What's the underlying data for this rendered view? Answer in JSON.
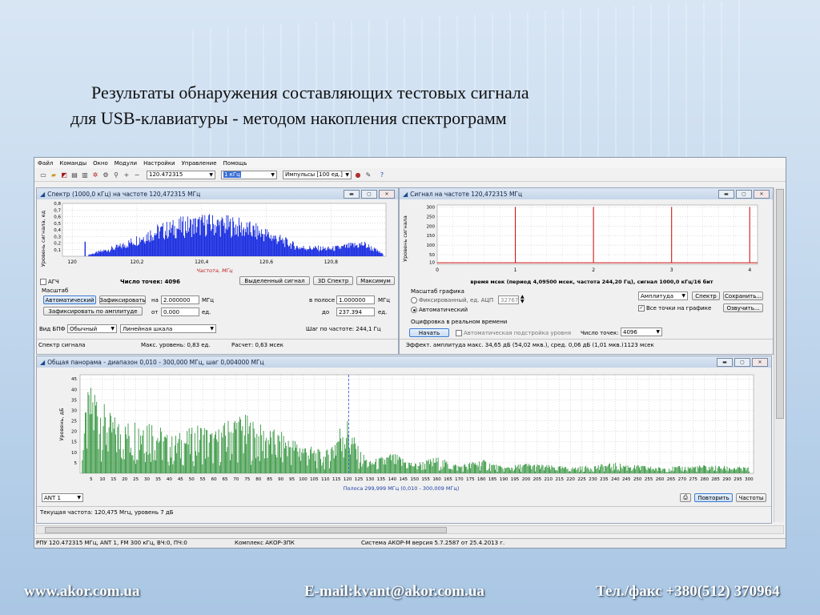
{
  "slide": {
    "title_line1": "Результаты обнаружения составляющих тестовых сигнала",
    "title_line2": "для USB-клавиатуры - методом накопления спектрограмм",
    "footer_site": "www.akor.com.ua",
    "footer_email": "E-mail:kvant@akor.com.ua",
    "footer_phone": "Тел./факс +380(512) 370964"
  },
  "menu": [
    "Файл",
    "Команды",
    "Окно",
    "Модули",
    "Настройки",
    "Управление",
    "Помощь"
  ],
  "toolbar": {
    "frequency_value": "120.472315",
    "bandwidth_value": "1 кГц",
    "mode_value": "Импульсы [100 ед.]"
  },
  "spectrum_window": {
    "title": "Спектр (1000,0 кГц) на частоте 120,472315 МГц",
    "y_axis_label": "Уровень сигнала, ед",
    "x_axis_label": "Частота, МГц",
    "agc_label": "АГЧ",
    "points_label": "Число точек: 4096",
    "btn_selected_signal": "Выделенный сигнал",
    "btn_3d": "3D Спектр",
    "btn_max": "Максимум",
    "scale_group": "Масштаб",
    "btn_auto": "Автоматический",
    "btn_fix": "Зафиксировать",
    "btn_fix_amp": "Зафиксировать по амплитуде",
    "lbl_at": "на",
    "val_at": "2.000000",
    "unit_mhz": "МГц",
    "lbl_from": "от",
    "val_from": "0.000",
    "unit_ed": "ед.",
    "lbl_band": "в полосе",
    "val_band": "1.000000",
    "lbl_to": "до",
    "val_to": "237.394",
    "lbl_fft": "Вид БПФ",
    "fft_value": "Обычный",
    "scale_value": "Линейная шкала",
    "step_label": "Шаг по частоте: 244,1 Гц",
    "status_left": "Спектр сигнала",
    "status_max": "Макс. уровень: 0,83 ед.",
    "status_calc": "Расчет: 0,63 мсек"
  },
  "signal_window": {
    "title": "Сигнал на частоте 120,472315 МГц",
    "y_axis_label": "Уровень сигнала",
    "x_caption": "время мсек (период 4,09500 мсек, частота 244,20 Гц), сигнал 1000,0 кГц/16 бит",
    "scale_group": "Масштаб графика",
    "radio_fixed": "Фиксированный, ед. АЦП",
    "fixed_value": "32767",
    "radio_auto": "Автоматический",
    "amp_value": "Амплитуда",
    "btn_spectrum": "Спектр",
    "btn_save": "Сохранить...",
    "chk_all_points": "Все точки на графике",
    "btn_voice": "Озвучить...",
    "digit_group": "Оцифровка в реальном времени",
    "btn_start": "Начать",
    "chk_auto_level": "Автоматическая подстройка уровня",
    "points_label": "Число точек:",
    "points_value": "4096",
    "status_effect": "Эффект. амплитуда макс. 34,65 дБ (54,02 мкв.), сред. 0,06 дБ (1,01 мкв.)",
    "status_time": "1123 мсек"
  },
  "panorama_window": {
    "title": "Общая панорама - диапазон 0,010 - 300,000 МГц, шаг 0,004000 МГц",
    "y_axis_label": "Уровень, дБ",
    "band_caption": "Полоса 299,999 МГц (0,010 - 300,009 МГц)",
    "antenna_value": "ANT 1",
    "btn_repeat": "Повторить",
    "btn_freqs": "Частоты",
    "status_current": "Текущая частота: 120,475 Мгц, уровень 7 дБ"
  },
  "statusbar": {
    "left": "РПУ 120.472315 МГц, ANT 1, FM 300 кГц, ВЧ:0, ПЧ:0",
    "mid": "Комплекс АКОР-3ПК",
    "right": "Система АКОР-М версия 5.7.2587 от 25.4.2013 г."
  },
  "chart_data": [
    {
      "type": "area",
      "id": "spectrum",
      "title": "Спектр (1000,0 кГц) на частоте 120,472315 МГц",
      "xlabel": "Частота, МГц",
      "ylabel": "Уровень сигнала, ед",
      "xlim": [
        119.97,
        120.97
      ],
      "ylim": [
        0,
        0.8
      ],
      "x_ticks": [
        120,
        120.2,
        120.4,
        120.6,
        120.8
      ],
      "x_tick_labels": [
        "120",
        "120,2",
        "120,4",
        "120,6",
        "120,8"
      ],
      "y_ticks": [
        0.1,
        0.2,
        0.3,
        0.4,
        0.5,
        0.6,
        0.7,
        0.8
      ],
      "y_tick_labels": [
        "0,1",
        "0,2",
        "0,3",
        "0,4",
        "0,5",
        "0,6",
        "0,7",
        "0,8"
      ],
      "envelope_x": [
        120.05,
        120.15,
        120.25,
        120.35,
        120.42,
        120.5,
        120.6,
        120.7,
        120.8,
        120.9,
        120.96
      ],
      "envelope_y": [
        0.03,
        0.2,
        0.48,
        0.62,
        0.66,
        0.62,
        0.45,
        0.18,
        0.15,
        0.25,
        0.05
      ],
      "marker_x": 120.04,
      "marker_y": 0.22,
      "color": "#1a2ee0"
    },
    {
      "type": "line",
      "id": "signal",
      "title": "Сигнал на частоте 120,472315 МГц",
      "xlabel": "время мсек (период 4,09500 мсек, частота 244,20 Гц), сигнал 1000,0 кГц/16 бит",
      "ylabel": "Уровень сигнала",
      "xlim": [
        0,
        4.1
      ],
      "ylim": [
        0,
        310
      ],
      "x_ticks": [
        0,
        1,
        2,
        3,
        4
      ],
      "y_ticks": [
        10,
        50,
        100,
        150,
        200,
        250,
        300
      ],
      "pulses_x": [
        1.0,
        2.0,
        3.0,
        4.0
      ],
      "pulse_y": 300,
      "baseline_y": 8,
      "color": "#d01818"
    },
    {
      "type": "bar",
      "id": "panorama",
      "title": "Общая панорама - диапазон 0,010 - 300,000 МГц, шаг 0,004000 МГц",
      "ylabel": "Уровень, дБ",
      "xlim": [
        0,
        302
      ],
      "ylim": [
        0,
        47
      ],
      "x_ticks": [
        5,
        10,
        15,
        20,
        25,
        30,
        35,
        40,
        45,
        50,
        55,
        60,
        65,
        70,
        75,
        80,
        85,
        90,
        95,
        100,
        105,
        110,
        115,
        120,
        125,
        130,
        135,
        140,
        145,
        150,
        155,
        160,
        165,
        170,
        175,
        180,
        185,
        190,
        195,
        200,
        205,
        210,
        215,
        220,
        225,
        230,
        235,
        240,
        245,
        250,
        255,
        260,
        265,
        270,
        275,
        280,
        285,
        290,
        295,
        300
      ],
      "y_ticks": [
        5,
        10,
        15,
        20,
        25,
        30,
        35,
        40,
        45
      ],
      "envelope_x": [
        1,
        4,
        7,
        12,
        20,
        30,
        40,
        50,
        55,
        60,
        70,
        75,
        80,
        90,
        100,
        110,
        115,
        118,
        120,
        125,
        130,
        140,
        150,
        160,
        170,
        180,
        190,
        200,
        220,
        240,
        260,
        280,
        300
      ],
      "envelope_y": [
        20,
        42,
        44,
        30,
        25,
        30,
        18,
        22,
        25,
        20,
        30,
        28,
        24,
        20,
        15,
        10,
        20,
        28,
        27,
        12,
        6,
        10,
        5,
        8,
        4,
        7,
        3,
        5,
        3,
        5,
        3,
        4,
        3
      ],
      "marker_x": 120.475,
      "color": "#1f8a2a"
    }
  ]
}
